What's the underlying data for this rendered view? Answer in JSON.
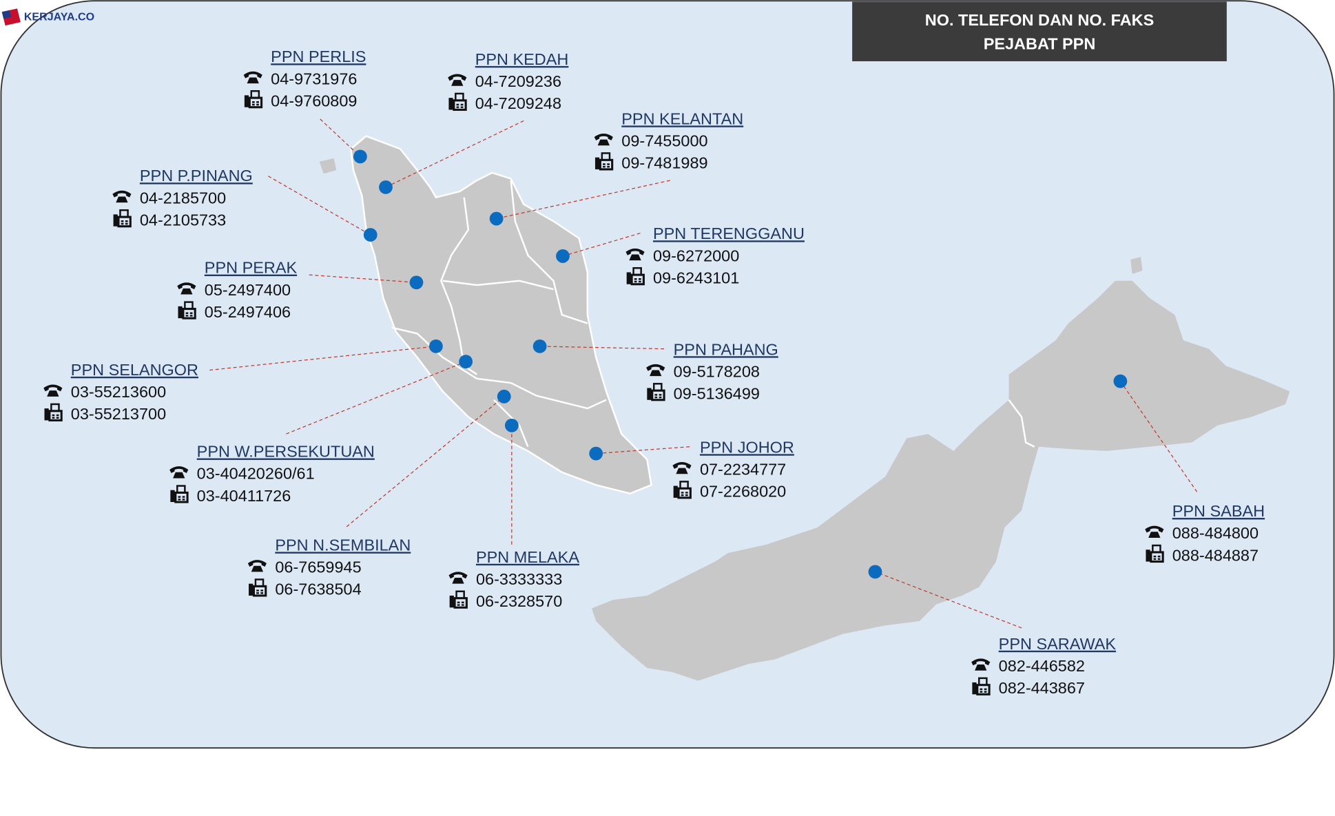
{
  "logo": "KERJAYA.CO",
  "header": {
    "title_lines": [
      "NO. TELEFON DAN NO. FAKS",
      "PEJABAT PPN"
    ]
  },
  "offices": [
    {
      "name": "PPN PERLIS",
      "phone": "04-9731976",
      "fax": "04-9760809"
    },
    {
      "name": "PPN KEDAH",
      "phone": "04-7209236",
      "fax": "04-7209248"
    },
    {
      "name": "PPN KELANTAN",
      "phone": "09-7455000",
      "fax": "09-7481989"
    },
    {
      "name": "PPN P.PINANG",
      "phone": "04-2185700",
      "fax": "04-2105733"
    },
    {
      "name": "PPN TERENGGANU",
      "phone": "09-6272000",
      "fax": "09-6243101"
    },
    {
      "name": "PPN PERAK",
      "phone": "05-2497400",
      "fax": "05-2497406"
    },
    {
      "name": "PPN PAHANG",
      "phone": "09-5178208",
      "fax": "09-5136499"
    },
    {
      "name": "PPN SELANGOR",
      "phone": "03-55213600",
      "fax": "03-55213700"
    },
    {
      "name": "PPN W.PERSEKUTUAN",
      "phone": "03-40420260/61",
      "fax": "03-40411726"
    },
    {
      "name": "PPN N.SEMBILAN",
      "phone": "06-7659945",
      "fax": "06-7638504"
    },
    {
      "name": "PPN MELAKA",
      "phone": "06-3333333",
      "fax": "06-2328570"
    },
    {
      "name": "PPN JOHOR",
      "phone": "07-2234777",
      "fax": "07-2268020"
    },
    {
      "name": "PPN SABAH",
      "phone": "088-484800",
      "fax": "088-484887"
    },
    {
      "name": "PPN SARAWAK",
      "phone": "082-446582",
      "fax": "082-443867"
    }
  ]
}
